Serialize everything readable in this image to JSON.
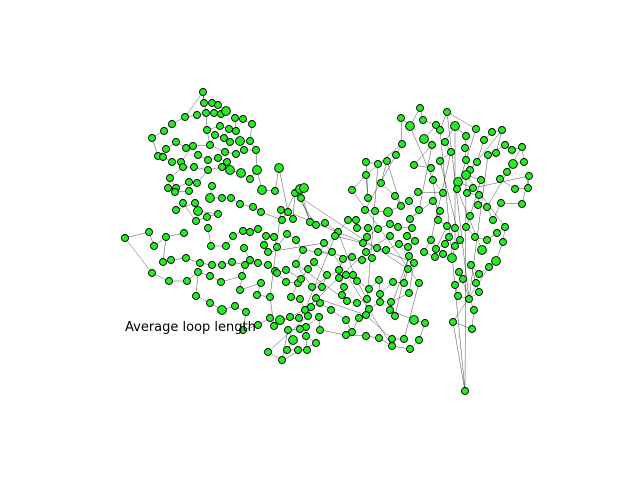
{
  "figure": {
    "caption": "Average loop length",
    "node_color": "#22ee22",
    "edge_color": "#000000"
  }
}
